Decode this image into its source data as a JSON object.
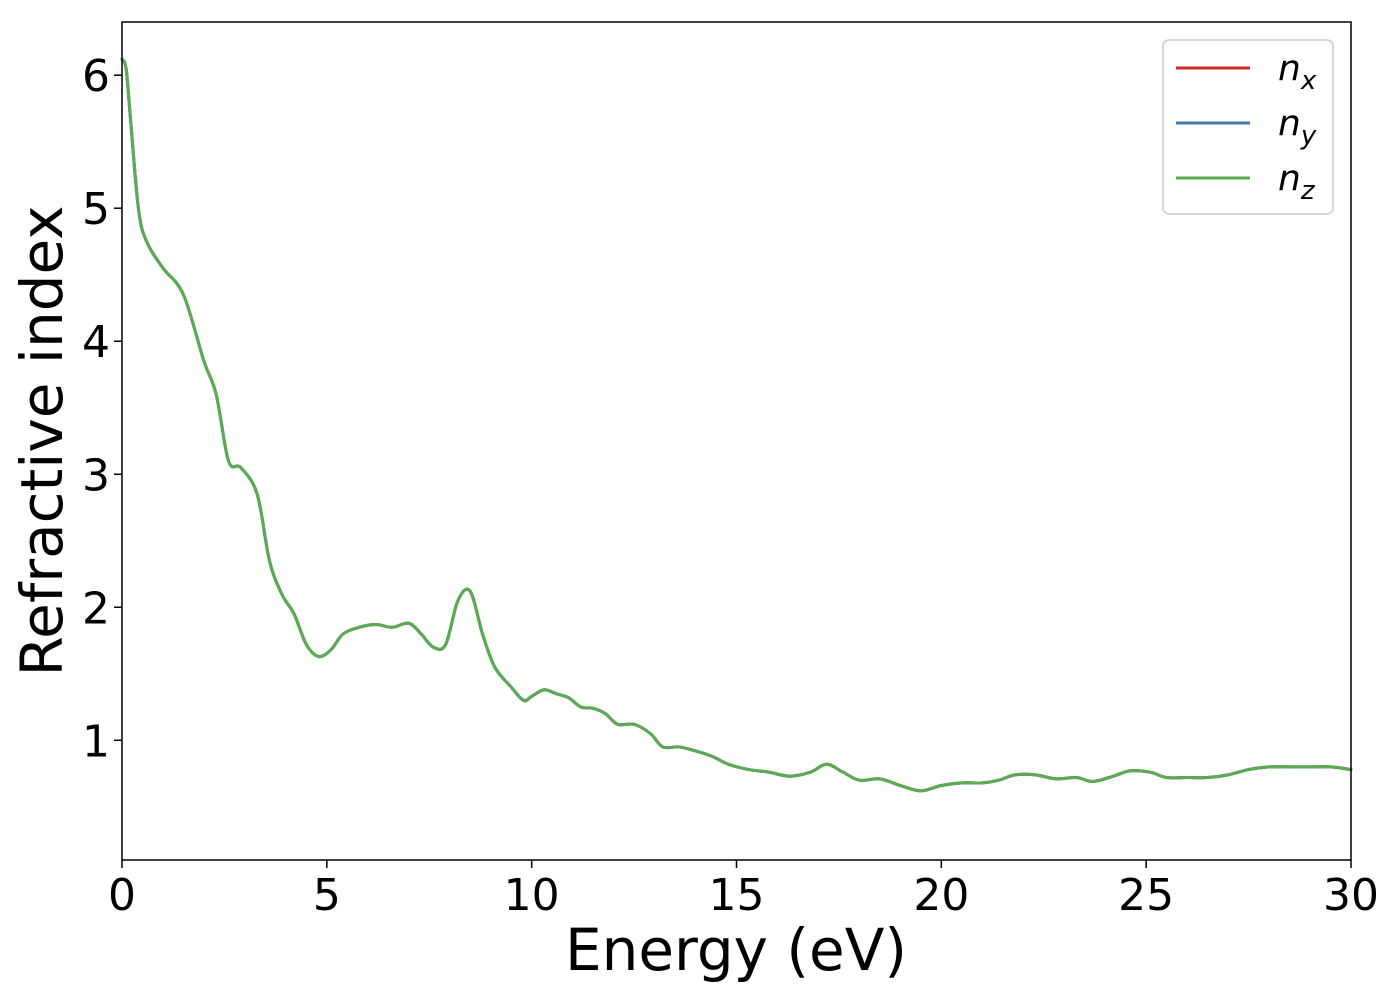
{
  "chart_data": {
    "type": "line",
    "title": "",
    "xlabel": "Energy (eV)",
    "ylabel": "Refractive index",
    "xlim": [
      0,
      30
    ],
    "ylim": [
      0.1,
      6.4
    ],
    "xticks": [
      0,
      5,
      10,
      15,
      20,
      25,
      30
    ],
    "yticks": [
      1,
      2,
      3,
      4,
      5,
      6
    ],
    "grid": false,
    "legend_position": "top-right",
    "x": [
      0,
      0.1,
      0.2,
      0.4,
      0.6,
      1.0,
      1.5,
      2.0,
      2.3,
      2.6,
      2.9,
      3.3,
      3.6,
      3.9,
      4.2,
      4.5,
      4.8,
      5.1,
      5.4,
      5.8,
      6.2,
      6.6,
      7.0,
      7.3,
      7.6,
      7.9,
      8.2,
      8.5,
      8.8,
      9.1,
      9.5,
      9.8,
      10.0,
      10.3,
      10.6,
      10.9,
      11.2,
      11.5,
      11.8,
      12.1,
      12.5,
      12.9,
      13.2,
      13.6,
      14.0,
      14.4,
      14.8,
      15.3,
      15.8,
      16.3,
      16.8,
      17.2,
      17.6,
      18.0,
      18.5,
      19.0,
      19.5,
      20.0,
      20.5,
      21.0,
      21.4,
      21.8,
      22.3,
      22.8,
      23.3,
      23.7,
      24.2,
      24.6,
      25.1,
      25.5,
      26.0,
      26.5,
      27.0,
      27.5,
      28.0,
      28.5,
      29.0,
      29.5,
      30.0
    ],
    "series": [
      {
        "name": "n_x",
        "label_base": "n",
        "label_sub": "x",
        "color": "#d62728",
        "y": [
          6.12,
          6.05,
          5.7,
          5.0,
          4.75,
          4.55,
          4.35,
          3.85,
          3.6,
          3.1,
          3.05,
          2.85,
          2.35,
          2.1,
          1.95,
          1.72,
          1.63,
          1.68,
          1.8,
          1.85,
          1.87,
          1.85,
          1.88,
          1.8,
          1.7,
          1.72,
          2.05,
          2.12,
          1.8,
          1.55,
          1.4,
          1.3,
          1.33,
          1.38,
          1.35,
          1.32,
          1.25,
          1.24,
          1.2,
          1.12,
          1.12,
          1.05,
          0.95,
          0.95,
          0.92,
          0.88,
          0.82,
          0.78,
          0.76,
          0.73,
          0.76,
          0.82,
          0.76,
          0.7,
          0.71,
          0.66,
          0.62,
          0.66,
          0.68,
          0.68,
          0.7,
          0.74,
          0.74,
          0.71,
          0.72,
          0.69,
          0.73,
          0.77,
          0.76,
          0.72,
          0.72,
          0.72,
          0.74,
          0.78,
          0.8,
          0.8,
          0.8,
          0.8,
          0.78
        ]
      },
      {
        "name": "n_y",
        "label_base": "n",
        "label_sub": "y",
        "color": "#3a7dae",
        "y": [
          6.12,
          6.05,
          5.7,
          5.0,
          4.75,
          4.55,
          4.35,
          3.85,
          3.6,
          3.1,
          3.05,
          2.85,
          2.35,
          2.1,
          1.95,
          1.72,
          1.63,
          1.68,
          1.8,
          1.85,
          1.87,
          1.85,
          1.88,
          1.8,
          1.7,
          1.72,
          2.05,
          2.12,
          1.8,
          1.55,
          1.4,
          1.3,
          1.33,
          1.38,
          1.35,
          1.32,
          1.25,
          1.24,
          1.2,
          1.12,
          1.12,
          1.05,
          0.95,
          0.95,
          0.92,
          0.88,
          0.82,
          0.78,
          0.76,
          0.73,
          0.76,
          0.82,
          0.76,
          0.7,
          0.71,
          0.66,
          0.62,
          0.66,
          0.68,
          0.68,
          0.7,
          0.74,
          0.74,
          0.71,
          0.72,
          0.69,
          0.73,
          0.77,
          0.76,
          0.72,
          0.72,
          0.72,
          0.74,
          0.78,
          0.8,
          0.8,
          0.8,
          0.8,
          0.78
        ]
      },
      {
        "name": "n_z",
        "label_base": "n",
        "label_sub": "z",
        "color": "#5aab52",
        "y": [
          6.12,
          6.05,
          5.7,
          5.0,
          4.75,
          4.55,
          4.35,
          3.85,
          3.6,
          3.1,
          3.05,
          2.85,
          2.35,
          2.1,
          1.95,
          1.72,
          1.63,
          1.68,
          1.8,
          1.85,
          1.87,
          1.85,
          1.88,
          1.8,
          1.7,
          1.72,
          2.05,
          2.12,
          1.8,
          1.55,
          1.4,
          1.3,
          1.33,
          1.38,
          1.35,
          1.32,
          1.25,
          1.24,
          1.2,
          1.12,
          1.12,
          1.05,
          0.95,
          0.95,
          0.92,
          0.88,
          0.82,
          0.78,
          0.76,
          0.73,
          0.76,
          0.82,
          0.76,
          0.7,
          0.71,
          0.66,
          0.62,
          0.66,
          0.68,
          0.68,
          0.7,
          0.74,
          0.74,
          0.71,
          0.72,
          0.69,
          0.73,
          0.77,
          0.76,
          0.72,
          0.72,
          0.72,
          0.74,
          0.78,
          0.8,
          0.8,
          0.8,
          0.8,
          0.78
        ]
      }
    ]
  }
}
